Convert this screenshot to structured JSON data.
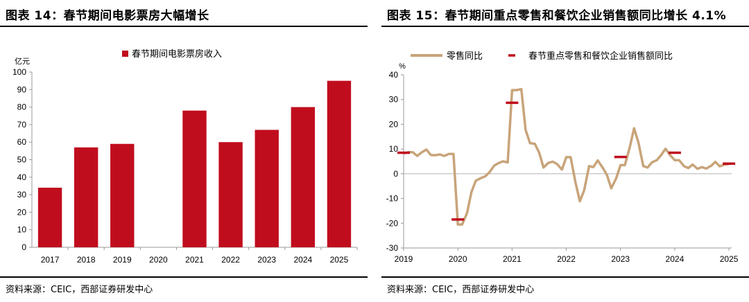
{
  "left": {
    "title": "图表 14：春节期间电影票房大幅增长",
    "source": "资料来源：CEIC，西部证券研发中心",
    "chart_data": {
      "type": "bar",
      "unit": "亿元",
      "categories": [
        "2017",
        "2018",
        "2019",
        "2020",
        "2021",
        "2022",
        "2023",
        "2024",
        "2025"
      ],
      "series": [
        {
          "name": "春节期间电影票房收入",
          "values": [
            34,
            57,
            59,
            0,
            78,
            60,
            67,
            80,
            95
          ]
        }
      ],
      "ylim": [
        0,
        100
      ],
      "yticks": [
        "0",
        "10",
        "20",
        "30",
        "40",
        "50",
        "60",
        "70",
        "80",
        "90",
        "100"
      ],
      "legend": "top-center",
      "grid": false,
      "colors": {
        "bar": "#C00D1E"
      }
    }
  },
  "right": {
    "title": "图表 15：春节期间重点零售和餐饮企业销售额同比增长 4.1%",
    "source": "资料来源：CEIC，西部证券研发中心",
    "chart_data": {
      "type": "line",
      "unit": "%",
      "xticks": [
        "2019",
        "2020",
        "2021",
        "2022",
        "2023",
        "2024",
        "2025"
      ],
      "ylim": [
        -30,
        40
      ],
      "yticks": [
        "-30",
        "-20",
        "-10",
        "0",
        "10",
        "20",
        "30",
        "40"
      ],
      "legend": "top",
      "grid": false,
      "colors": {
        "line": "#C8A47A",
        "marker": "#C00D1E"
      },
      "series": [
        {
          "name": "零售同比",
          "x": [
            2019.0,
            2019.08,
            2019.17,
            2019.25,
            2019.33,
            2019.42,
            2019.5,
            2019.58,
            2019.67,
            2019.75,
            2019.83,
            2019.92,
            2020.0,
            2020.08,
            2020.17,
            2020.25,
            2020.33,
            2020.42,
            2020.5,
            2020.58,
            2020.67,
            2020.75,
            2020.83,
            2020.92,
            2021.0,
            2021.08,
            2021.17,
            2021.25,
            2021.33,
            2021.42,
            2021.5,
            2021.58,
            2021.67,
            2021.75,
            2021.83,
            2021.92,
            2022.0,
            2022.08,
            2022.17,
            2022.25,
            2022.33,
            2022.42,
            2022.5,
            2022.58,
            2022.67,
            2022.75,
            2022.83,
            2022.92,
            2023.0,
            2023.08,
            2023.17,
            2023.25,
            2023.33,
            2023.42,
            2023.5,
            2023.58,
            2023.67,
            2023.75,
            2023.83,
            2023.92,
            2024.0,
            2024.08,
            2024.17,
            2024.25,
            2024.33,
            2024.42,
            2024.5,
            2024.58,
            2024.67,
            2024.75,
            2024.83,
            2024.92,
            2025.0
          ],
          "values": [
            8.2,
            8.7,
            8.7,
            7.2,
            8.6,
            9.8,
            7.6,
            7.5,
            7.8,
            7.2,
            8.0,
            8.0,
            -20.5,
            -20.5,
            -15.8,
            -7.5,
            -2.8,
            -1.8,
            -1.1,
            0.5,
            3.3,
            4.3,
            5.0,
            4.6,
            33.8,
            33.8,
            34.2,
            17.7,
            12.4,
            12.1,
            8.5,
            2.5,
            4.4,
            4.9,
            3.9,
            1.7,
            6.7,
            6.7,
            -3.5,
            -11.1,
            -6.7,
            3.1,
            2.7,
            5.4,
            2.5,
            -0.5,
            -5.9,
            -1.8,
            3.5,
            3.5,
            10.6,
            18.4,
            12.7,
            3.1,
            2.5,
            4.6,
            5.5,
            7.6,
            10.1,
            7.4,
            5.5,
            5.5,
            3.1,
            2.3,
            3.7,
            2.0,
            2.7,
            2.1,
            3.2,
            4.8,
            3.0,
            3.7,
            4.0
          ]
        },
        {
          "name": "春节重点零售和餐饮企业销售额同比",
          "x": [
            2019.0,
            2020.0,
            2021.0,
            2023.0,
            2024.0,
            2025.0
          ],
          "values": [
            8.5,
            -18.5,
            28.7,
            6.8,
            8.5,
            4.1
          ]
        }
      ]
    }
  }
}
